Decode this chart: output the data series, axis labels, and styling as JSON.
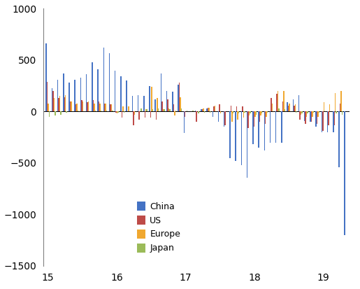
{
  "china": [
    660,
    230,
    310,
    370,
    280,
    310,
    330,
    360,
    480,
    410,
    620,
    570,
    400,
    340,
    300,
    150,
    160,
    150,
    250,
    120,
    370,
    200,
    190,
    260,
    -210,
    0,
    10,
    20,
    30,
    -50,
    -100,
    -150,
    -450,
    -480,
    -520,
    -640,
    -320,
    -350,
    -380,
    -300,
    -300,
    -300,
    90,
    120,
    160,
    -90,
    -100,
    -150,
    -200,
    -200,
    -200,
    -540,
    -1200
  ],
  "us": [
    290,
    200,
    130,
    140,
    100,
    70,
    110,
    90,
    110,
    100,
    80,
    70,
    -10,
    -60,
    0,
    -130,
    -80,
    -60,
    -60,
    -80,
    100,
    120,
    70,
    280,
    -50,
    0,
    -100,
    20,
    40,
    50,
    70,
    -130,
    60,
    50,
    50,
    -160,
    -150,
    -100,
    -120,
    130,
    170,
    100,
    60,
    60,
    -80,
    -120,
    -100,
    -120,
    -190,
    -130,
    -130,
    80,
    0
  ],
  "europe": [
    80,
    130,
    150,
    160,
    100,
    80,
    100,
    100,
    80,
    80,
    80,
    70,
    -20,
    50,
    50,
    -30,
    0,
    20,
    240,
    130,
    20,
    30,
    -40,
    140,
    0,
    0,
    0,
    30,
    40,
    60,
    -20,
    0,
    -100,
    -80,
    -60,
    -40,
    -50,
    -40,
    -50,
    80,
    200,
    200,
    80,
    70,
    -30,
    -50,
    -50,
    -50,
    90,
    70,
    180,
    200,
    0
  ],
  "japan": [
    -50,
    -40,
    -30,
    -10,
    0,
    10,
    0,
    0,
    10,
    10,
    10,
    10,
    -10,
    -10,
    0,
    0,
    30,
    20,
    20,
    30,
    20,
    20,
    10,
    30,
    10,
    10,
    -20,
    -10,
    -10,
    0,
    0,
    0,
    -20,
    -20,
    -10,
    -20,
    -30,
    -20,
    -10,
    0,
    30,
    20,
    0,
    -10,
    -20,
    -20,
    -10,
    -10,
    0,
    0,
    -20,
    -30,
    0
  ],
  "china_color": "#4472C4",
  "us_color": "#BE4B48",
  "europe_color": "#F0A830",
  "japan_color": "#9BBB59",
  "ylim": [
    -1500,
    1000
  ],
  "yticks": [
    -1500,
    -1000,
    -500,
    0,
    500,
    1000
  ],
  "xtick_positions": [
    0,
    12,
    24,
    36,
    48
  ],
  "xtick_labels": [
    "15",
    "16",
    "17",
    "18",
    "19"
  ],
  "bar_width": 0.18,
  "n_months": 53,
  "legend_labels": [
    "China",
    "US",
    "Europe",
    "Japan"
  ]
}
